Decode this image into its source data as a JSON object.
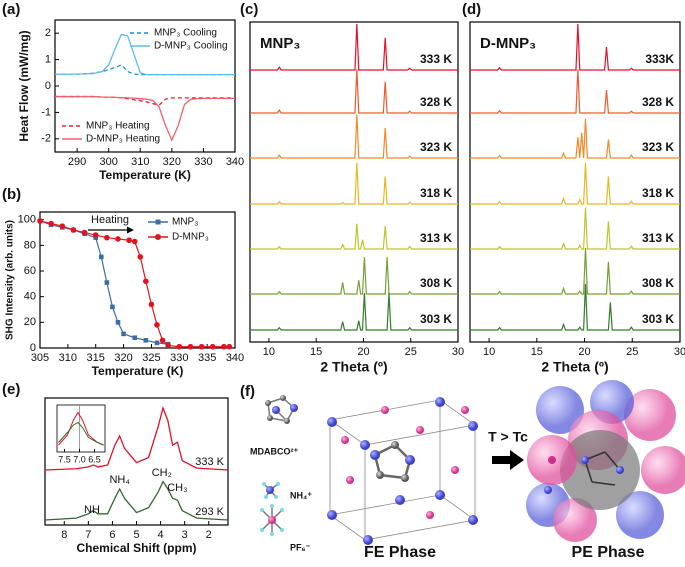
{
  "chart_data": [
    {
      "type": "line",
      "panel_label": "(a)",
      "xlabel": "Temperature (K)",
      "ylabel": "Heat Flow (mW/mg)",
      "x": [
        283,
        290,
        295,
        298,
        300,
        302,
        304,
        306,
        308,
        310,
        312,
        314,
        316,
        318,
        320,
        322,
        324,
        326,
        330,
        340
      ],
      "xlim": [
        283,
        340
      ],
      "xticks": [
        290,
        300,
        310,
        320,
        330,
        340
      ],
      "ylim": [
        -2.5,
        2.5
      ],
      "yticks": [
        -2,
        -1,
        0,
        1,
        2
      ],
      "series": [
        {
          "name": "MNP₃ Cooling",
          "color": "#1f8fd0",
          "linestyle": "dashed",
          "legend": "upper-right",
          "values": [
            0.45,
            0.45,
            0.48,
            0.55,
            0.62,
            0.7,
            0.8,
            0.55,
            0.45,
            0.43,
            0.43,
            0.43,
            0.43,
            0.43,
            0.43,
            0.43,
            0.43,
            0.43,
            0.43,
            0.43
          ]
        },
        {
          "name": "D-MNP₃ Cooling",
          "color": "#5bbde8",
          "linestyle": "solid",
          "legend": "upper-right",
          "values": [
            0.45,
            0.45,
            0.47,
            0.55,
            0.8,
            1.4,
            1.95,
            1.9,
            1.2,
            0.5,
            0.43,
            0.43,
            0.43,
            0.43,
            0.43,
            0.43,
            0.43,
            0.43,
            0.43,
            0.43
          ]
        },
        {
          "name": "MNP₃ Heating",
          "color": "#e8222e",
          "linestyle": "dashed",
          "legend": "lower-left",
          "values": [
            -0.4,
            -0.4,
            -0.4,
            -0.42,
            -0.42,
            -0.43,
            -0.45,
            -0.48,
            -0.52,
            -0.56,
            -0.6,
            -0.67,
            -0.72,
            -0.5,
            -0.45,
            -0.45,
            -0.45,
            -0.45,
            -0.45,
            -0.45
          ]
        },
        {
          "name": "D-MNP₃ Heating",
          "color": "#f0606a",
          "linestyle": "solid",
          "legend": "lower-left",
          "values": [
            -0.4,
            -0.4,
            -0.4,
            -0.42,
            -0.42,
            -0.43,
            -0.44,
            -0.45,
            -0.46,
            -0.48,
            -0.5,
            -0.55,
            -0.8,
            -1.5,
            -2.05,
            -1.5,
            -0.7,
            -0.5,
            -0.47,
            -0.47
          ]
        }
      ]
    },
    {
      "type": "line",
      "panel_label": "(b)",
      "xlabel": "Temperature (K)",
      "ylabel": "SHG Intensity (arb. units)",
      "annotation": "Heating",
      "xlim": [
        305,
        340
      ],
      "xticks": [
        305,
        310,
        315,
        320,
        325,
        330,
        335,
        340
      ],
      "ylim": [
        0,
        106
      ],
      "yticks": [
        0,
        20,
        40,
        60,
        80,
        100
      ],
      "series": [
        {
          "name": "MNP₃",
          "color": "#3a6ea5",
          "marker": "square",
          "x": [
            305,
            307,
            309,
            311,
            313,
            315,
            316,
            317,
            318,
            319,
            320,
            322,
            324,
            326,
            328
          ],
          "values": [
            99,
            96,
            94,
            92,
            89,
            86,
            71,
            51,
            32,
            20,
            11,
            8,
            6,
            4,
            3
          ]
        },
        {
          "name": "D-MNP₃",
          "color": "#e0141e",
          "marker": "circle",
          "x": [
            305,
            307,
            309,
            311,
            313,
            315,
            317,
            319,
            321,
            322,
            323,
            324,
            325,
            326,
            327,
            328,
            330,
            332,
            334,
            336,
            338,
            339
          ],
          "values": [
            99,
            97,
            95,
            92,
            90,
            88,
            86,
            85,
            84,
            83,
            71,
            52,
            34,
            18,
            6,
            2,
            1,
            1,
            1,
            1,
            1,
            1
          ]
        }
      ]
    },
    {
      "type": "stacked-line",
      "panel_label": "(c)",
      "title": "MNP₃",
      "xlabel": "2 Theta (º)",
      "x": [
        8,
        10.9,
        11.1,
        11.3,
        17.6,
        17.8,
        18.0,
        19.1,
        19.3,
        19.5,
        19.7,
        19.9,
        20.1,
        20.3,
        22.1,
        22.3,
        22.5,
        22.7,
        22.9,
        24.7,
        24.9,
        25.1,
        30
      ],
      "xlim": [
        8,
        30
      ],
      "xticks": [
        10,
        15,
        20,
        25,
        30
      ],
      "series": [
        {
          "name": "333 K",
          "color": "#e4102a",
          "values": [
            0,
            0,
            0.06,
            0,
            0,
            0,
            0,
            0,
            1,
            0,
            0,
            0,
            0,
            0,
            0,
            0.7,
            0,
            0,
            0,
            0,
            0.04,
            0,
            0
          ]
        },
        {
          "name": "328 K",
          "color": "#ef5a2e",
          "values": [
            0,
            0,
            0.06,
            0,
            0,
            0,
            0,
            0,
            0.95,
            0,
            0,
            0,
            0,
            0,
            0,
            0.68,
            0,
            0,
            0,
            0,
            0.04,
            0,
            0
          ]
        },
        {
          "name": "323 K",
          "color": "#f28a26",
          "values": [
            0,
            0,
            0.06,
            0,
            0,
            0,
            0,
            0,
            0.95,
            0,
            0,
            0,
            0,
            0,
            0,
            0.65,
            0,
            0,
            0,
            0,
            0.04,
            0,
            0
          ]
        },
        {
          "name": "318 K",
          "color": "#e8b820",
          "values": [
            0,
            0,
            0.05,
            0,
            0,
            0.03,
            0,
            0,
            0.9,
            0,
            0,
            0,
            0,
            0,
            0,
            0.6,
            0,
            0,
            0,
            0,
            0.04,
            0,
            0
          ]
        },
        {
          "name": "313 K",
          "color": "#bfc42e",
          "values": [
            0,
            0,
            0.05,
            0,
            0,
            0.1,
            0,
            0,
            0.55,
            0,
            0,
            0.2,
            0,
            0,
            0,
            0.5,
            0,
            0,
            0,
            0,
            0.05,
            0,
            0
          ]
        },
        {
          "name": "308 K",
          "color": "#76a032",
          "values": [
            0,
            0,
            0.05,
            0,
            0,
            0.25,
            0,
            0,
            0,
            0.3,
            0,
            0,
            0.8,
            0,
            0,
            0,
            0.8,
            0,
            0,
            0,
            0.05,
            0,
            0
          ]
        },
        {
          "name": "303 K",
          "color": "#357a2c",
          "values": [
            0,
            0,
            0.05,
            0,
            0,
            0.18,
            0,
            0,
            0,
            0.2,
            0,
            0,
            0.8,
            0,
            0,
            0,
            0,
            0.8,
            0,
            0,
            0.05,
            0,
            0
          ]
        }
      ]
    },
    {
      "type": "stacked-line",
      "panel_label": "(d)",
      "title": "D-MNP₃",
      "xlabel": "2 Theta (º)",
      "x": [
        8,
        10.9,
        11.1,
        11.3,
        17.6,
        17.8,
        18.0,
        19.1,
        19.3,
        19.5,
        19.7,
        19.9,
        20.1,
        20.3,
        22.1,
        22.3,
        22.5,
        22.7,
        22.9,
        24.7,
        24.9,
        25.1,
        30
      ],
      "xlim": [
        8,
        30
      ],
      "xticks": [
        10,
        15,
        20,
        25,
        30
      ],
      "series": [
        {
          "name": "333K",
          "color": "#e4102a",
          "values": [
            0,
            0,
            0.05,
            0,
            0,
            0,
            0,
            0,
            1,
            0,
            0,
            0,
            0,
            0,
            0,
            0.5,
            0,
            0,
            0,
            0,
            0.04,
            0,
            0
          ]
        },
        {
          "name": "328 K",
          "color": "#ef5a2e",
          "values": [
            0,
            0,
            0.05,
            0,
            0,
            0,
            0,
            0,
            0.95,
            0,
            0,
            0,
            0,
            0,
            0,
            0.5,
            0,
            0,
            0,
            0,
            0.04,
            0,
            0
          ]
        },
        {
          "name": "323 K",
          "color": "#f28a26",
          "values": [
            0,
            0,
            0.05,
            0,
            0,
            0.1,
            0,
            0,
            0.45,
            0,
            0.55,
            0,
            0.85,
            0,
            0,
            0,
            0.4,
            0,
            0,
            0,
            0.06,
            0,
            0
          ]
        },
        {
          "name": "318 K",
          "color": "#e8b820",
          "values": [
            0,
            0,
            0.05,
            0,
            0,
            0.12,
            0,
            0,
            0,
            0.1,
            0,
            0,
            0.9,
            0,
            0,
            0,
            0.6,
            0,
            0,
            0,
            0.06,
            0,
            0
          ]
        },
        {
          "name": "313 K",
          "color": "#bfc42e",
          "values": [
            0,
            0,
            0.05,
            0,
            0,
            0.12,
            0,
            0,
            0,
            0.08,
            0,
            0,
            0.9,
            0,
            0,
            0,
            0.6,
            0,
            0,
            0,
            0.06,
            0,
            0
          ]
        },
        {
          "name": "308 K",
          "color": "#76a032",
          "values": [
            0,
            0,
            0.05,
            0,
            0,
            0.12,
            0,
            0,
            0,
            0.06,
            0,
            0,
            1,
            0,
            0,
            0,
            0.7,
            0,
            0,
            0,
            0.06,
            0,
            0
          ]
        },
        {
          "name": "303 K",
          "color": "#357a2c",
          "values": [
            0,
            0,
            0.05,
            0,
            0,
            0.12,
            0,
            0,
            0,
            0.06,
            0,
            0,
            1,
            0,
            0,
            0,
            0,
            0.6,
            0,
            0,
            0.06,
            0,
            0
          ]
        }
      ]
    },
    {
      "type": "offset-line",
      "panel_label": "(e)",
      "xlabel": "Chemical Shift (ppm)",
      "x": [
        8.8,
        7.5,
        7.0,
        6.8,
        6.6,
        6.2,
        5.9,
        5.7,
        5.5,
        5.0,
        4.5,
        4.1,
        3.9,
        3.7,
        3.5,
        3.3,
        3.1,
        2.5,
        1.2
      ],
      "xlim": [
        8.8,
        1.2
      ],
      "xticks": [
        8,
        7,
        6,
        5,
        4,
        3,
        2
      ],
      "peak_labels": [
        "NH",
        "NH₄",
        "CH₂",
        "CH₃"
      ],
      "series": [
        {
          "name": "333 K",
          "color": "#e4102a",
          "values": [
            0,
            0.02,
            0.05,
            0.08,
            0.05,
            0.08,
            0.4,
            0.55,
            0.35,
            0.12,
            0.2,
            0.7,
            1.0,
            0.8,
            0.4,
            0.45,
            0.15,
            0.03,
            0
          ]
        },
        {
          "name": "293 K",
          "color": "#2e6a2a",
          "values": [
            0,
            0.03,
            0.1,
            0.15,
            0.1,
            0.1,
            0.35,
            0.5,
            0.35,
            0.12,
            0.2,
            0.45,
            0.62,
            0.5,
            0.35,
            0.32,
            0.15,
            0.03,
            0
          ]
        }
      ],
      "inset": {
        "x": [
          7.7,
          7.4,
          7.2,
          7.05,
          6.9,
          6.7,
          6.4,
          6.2
        ],
        "xlim": [
          7.75,
          6.15
        ],
        "xticks": [
          7.5,
          {
            "value": 7,
            "label": "7.0"
          },
          6.5
        ],
        "series": [
          {
            "values": [
              0.1,
              0.3,
              0.6,
              0.75,
              0.6,
              0.3,
              0.15,
              0.1
            ]
          },
          {
            "values": [
              0.15,
              0.35,
              0.5,
              0.55,
              0.45,
              0.25,
              0.15,
              0.1
            ]
          }
        ]
      }
    }
  ],
  "diagram": {
    "panel_label": "(f)",
    "ion_labels": [
      "MDABCO²⁺",
      "NH₄⁺",
      "PF₆⁻"
    ],
    "arrow_label": "T > Tc",
    "phases": [
      "FE Phase",
      "PE Phase"
    ]
  }
}
